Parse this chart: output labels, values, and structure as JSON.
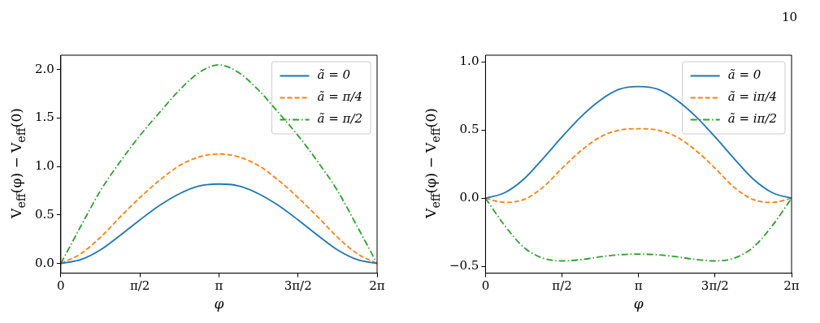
{
  "chart_data": [
    {
      "type": "line",
      "xlabel": "φ",
      "ylabel": "V$_{eff}$(φ) − V$_{eff}$(0)",
      "legend": "top right",
      "grid": false,
      "x": [
        0,
        0.3927,
        0.7854,
        1.1781,
        1.5708,
        1.9635,
        2.3562,
        2.7489,
        3.1416,
        3.5343,
        3.927,
        4.3197,
        4.7124,
        5.1051,
        5.4978,
        5.8905,
        6.2832
      ],
      "xlim": [
        0,
        6.2832
      ],
      "xticks": [
        {
          "value": 0,
          "label": "0"
        },
        {
          "value": 1.5708,
          "label": "π/2"
        },
        {
          "value": 3.1416,
          "label": "π"
        },
        {
          "value": 4.7124,
          "label": "3π/2"
        },
        {
          "value": 6.2832,
          "label": "2π"
        }
      ],
      "ylim": [
        -0.1,
        2.15
      ],
      "yticks": [
        {
          "value": 0,
          "label": "0.0"
        },
        {
          "value": 0.5,
          "label": "0.5"
        },
        {
          "value": 1,
          "label": "1.0"
        },
        {
          "value": 1.5,
          "label": "1.5"
        },
        {
          "value": 2,
          "label": "2.0"
        }
      ],
      "series": [
        {
          "name": "ã = 0",
          "color": "#1f77b4",
          "line_style": "solid",
          "values": [
            0,
            0.04,
            0.14,
            0.29,
            0.45,
            0.6,
            0.72,
            0.8,
            0.82,
            0.8,
            0.72,
            0.6,
            0.45,
            0.29,
            0.14,
            0.04,
            0
          ]
        },
        {
          "name": "ã = π/4",
          "color": "#ff7f0e",
          "line_style": "dashed",
          "values": [
            0,
            0.1,
            0.27,
            0.48,
            0.68,
            0.86,
            1.01,
            1.1,
            1.13,
            1.1,
            1.01,
            0.86,
            0.68,
            0.48,
            0.27,
            0.1,
            0
          ]
        },
        {
          "name": "ã = π/2",
          "color": "#2ca02c",
          "line_style": "dashdot",
          "values": [
            0,
            0.38,
            0.75,
            1.05,
            1.32,
            1.56,
            1.79,
            1.97,
            2.05,
            1.97,
            1.79,
            1.56,
            1.32,
            1.05,
            0.75,
            0.38,
            0
          ]
        }
      ]
    },
    {
      "type": "line",
      "xlabel": "φ",
      "ylabel": "V$_{eff}$(φ) − V$_{eff}$(0)",
      "legend": "top right",
      "grid": false,
      "annotations": [
        "10"
      ],
      "x": [
        0,
        0.3927,
        0.7854,
        1.1781,
        1.5708,
        1.9635,
        2.3562,
        2.7489,
        3.1416,
        3.5343,
        3.927,
        4.3197,
        4.7124,
        5.1051,
        5.4978,
        5.8905,
        6.2832
      ],
      "xlim": [
        0,
        6.2832
      ],
      "xticks": [
        {
          "value": 0,
          "label": "0"
        },
        {
          "value": 1.5708,
          "label": "π/2"
        },
        {
          "value": 3.1416,
          "label": "π"
        },
        {
          "value": 4.7124,
          "label": "3π/2"
        },
        {
          "value": 6.2832,
          "label": "2π"
        }
      ],
      "ylim": [
        -0.55,
        1.05
      ],
      "yticks": [
        {
          "value": -0.5,
          "label": "−0.5"
        },
        {
          "value": 0,
          "label": "0.0"
        },
        {
          "value": 0.5,
          "label": "0.5"
        },
        {
          "value": 1,
          "label": "1.0"
        }
      ],
      "series": [
        {
          "name": "ã = 0",
          "color": "#1f77b4",
          "line_style": "solid",
          "values": [
            0,
            0.04,
            0.14,
            0.29,
            0.45,
            0.6,
            0.72,
            0.8,
            0.82,
            0.8,
            0.72,
            0.6,
            0.45,
            0.29,
            0.14,
            0.04,
            0
          ]
        },
        {
          "name": "ã = iπ/4",
          "color": "#ff7f0e",
          "line_style": "dashed",
          "values": [
            0,
            -0.03,
            -0.01,
            0.08,
            0.22,
            0.35,
            0.45,
            0.5,
            0.51,
            0.5,
            0.45,
            0.35,
            0.22,
            0.08,
            -0.01,
            -0.03,
            0
          ]
        },
        {
          "name": "ã = iπ/2",
          "color": "#2ca02c",
          "line_style": "dashdot",
          "values": [
            0,
            -0.2,
            -0.36,
            -0.44,
            -0.46,
            -0.45,
            -0.43,
            -0.415,
            -0.41,
            -0.415,
            -0.43,
            -0.45,
            -0.46,
            -0.44,
            -0.36,
            -0.2,
            0
          ]
        }
      ]
    }
  ]
}
